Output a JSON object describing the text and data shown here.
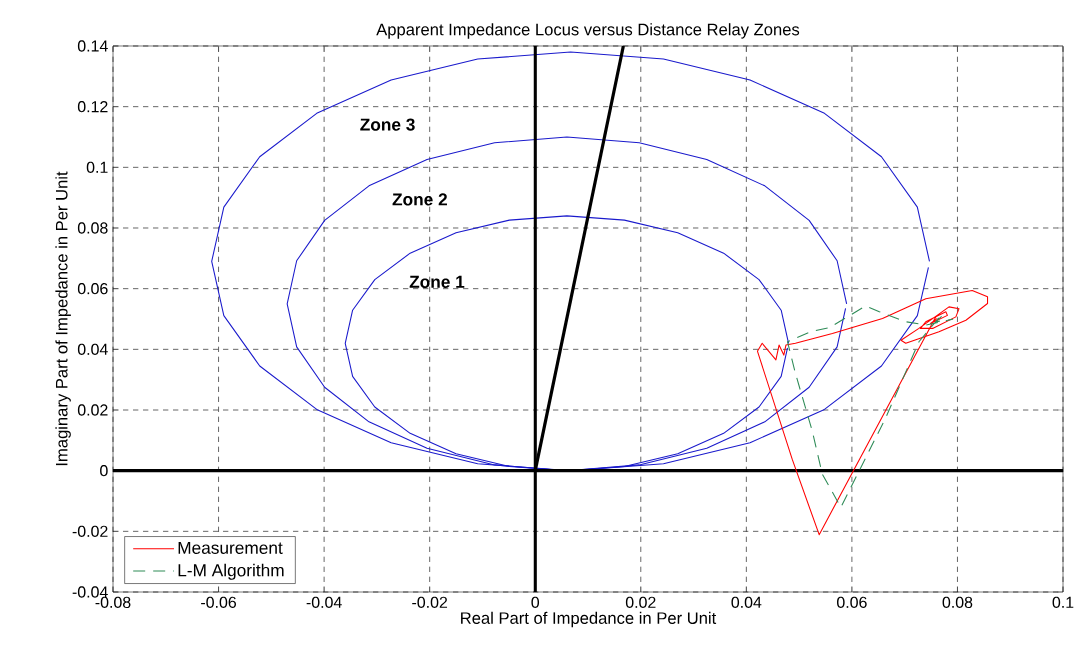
{
  "chart_data": {
    "type": "line",
    "title": "Apparent Impedance Locus versus Distance Relay Zones",
    "xlabel": "Real Part of Impedance in Per Unit",
    "ylabel": "Imaginary Part of Impedance in Per Unit",
    "xlim": [
      -0.08,
      0.1
    ],
    "ylim": [
      -0.04,
      0.14
    ],
    "xticks": [
      -0.08,
      -0.06,
      -0.04,
      -0.02,
      0,
      0.02,
      0.04,
      0.06,
      0.08,
      0.1
    ],
    "yticks": [
      -0.04,
      -0.02,
      0,
      0.02,
      0.04,
      0.06,
      0.08,
      0.1,
      0.12,
      0.14
    ],
    "grid": true,
    "legend": "bottom left",
    "series": [
      {
        "color": "#1a1acc",
        "x": [
          0.0747,
          0.0724,
          0.0656,
          0.0548,
          0.0407,
          0.0243,
          0.0067,
          -0.0109,
          -0.0273,
          -0.0414,
          -0.0522,
          -0.059,
          -0.0613,
          -0.059,
          -0.0522,
          -0.0414,
          -0.0273,
          -0.0109,
          0.0067,
          0.0243,
          0.0407,
          0.0548,
          0.0656,
          0.0724,
          0.0745
        ],
        "values": [
          0.069,
          0.0869,
          0.1035,
          0.1178,
          0.1288,
          0.1357,
          0.138,
          0.1357,
          0.1288,
          0.1178,
          0.1035,
          0.0869,
          0.069,
          0.0511,
          0.0345,
          0.0202,
          0.0092,
          0.0023,
          0.0,
          0.0023,
          0.0092,
          0.0202,
          0.0345,
          0.0511,
          0.067
        ]
      },
      {
        "color": "#1a1acc",
        "x": [
          0.059,
          0.0572,
          0.0519,
          0.0435,
          0.0325,
          0.0197,
          0.006,
          -0.0077,
          -0.0205,
          -0.0315,
          -0.0399,
          -0.0452,
          -0.047,
          -0.0452,
          -0.0399,
          -0.0315,
          -0.0205,
          -0.0077,
          0.006,
          0.0197,
          0.0325,
          0.0435,
          0.0519,
          0.0572,
          0.0588
        ],
        "values": [
          0.055,
          0.0692,
          0.0825,
          0.0939,
          0.1026,
          0.1081,
          0.11,
          0.1081,
          0.1026,
          0.0939,
          0.0825,
          0.0692,
          0.055,
          0.0408,
          0.0275,
          0.0161,
          0.0074,
          0.0019,
          0.0,
          0.0019,
          0.0074,
          0.0161,
          0.0275,
          0.0408,
          0.0535
        ]
      },
      {
        "color": "#1a1acc",
        "x": [
          0.048,
          0.0466,
          0.0424,
          0.0357,
          0.027,
          0.0169,
          0.006,
          -0.0049,
          -0.015,
          -0.0237,
          -0.0304,
          -0.0346,
          -0.036,
          -0.0346,
          -0.0304,
          -0.0237,
          -0.015,
          -0.0049,
          0.006,
          0.0169,
          0.027,
          0.0357,
          0.0424,
          0.0466,
          0.0478
        ],
        "values": [
          0.042,
          0.0529,
          0.063,
          0.0717,
          0.0784,
          0.0826,
          0.084,
          0.0826,
          0.0784,
          0.0717,
          0.063,
          0.0529,
          0.042,
          0.0311,
          0.021,
          0.0123,
          0.0056,
          0.0014,
          0.0,
          0.0014,
          0.0056,
          0.0123,
          0.021,
          0.0311,
          0.0405
        ]
      },
      {
        "color": "#000000",
        "x": [
          0,
          0.0167
        ],
        "values": [
          0,
          0.14
        ]
      },
      {
        "color": "#000000",
        "x": [
          -0.08,
          0.1
        ],
        "values": [
          0,
          0
        ]
      },
      {
        "color": "#000000",
        "x": [
          0,
          0
        ],
        "values": [
          -0.04,
          0.14
        ]
      },
      {
        "name": "Measurement",
        "color": "#ff0000",
        "line_style": "solid",
        "x": [
          0.0759,
          0.0737,
          0.0538,
          0.0487,
          0.0421,
          0.043,
          0.0456,
          0.0462,
          0.0471,
          0.0475,
          0.0493,
          0.0563,
          0.0658,
          0.074,
          0.0828,
          0.0857,
          0.0857,
          0.0816,
          0.0765,
          0.0702,
          0.0693,
          0.0727,
          0.0784,
          0.0803,
          0.0797,
          0.0753,
          0.073,
          0.074,
          0.0778,
          0.0781,
          0.0749,
          0.0762
        ],
        "values": [
          0.0507,
          0.0436,
          -0.0211,
          0.0037,
          0.0394,
          0.042,
          0.0365,
          0.0414,
          0.0381,
          0.0414,
          0.042,
          0.0452,
          0.0502,
          0.0567,
          0.0594,
          0.0573,
          0.0551,
          0.0496,
          0.0458,
          0.042,
          0.043,
          0.0469,
          0.054,
          0.0534,
          0.0507,
          0.0469,
          0.0469,
          0.0491,
          0.0524,
          0.0512,
          0.0485,
          0.0502
        ]
      },
      {
        "name": "L-M Algorithm",
        "color": "#2e8b57",
        "line_style": "dashed",
        "x": [
          0.0765,
          0.0727,
          0.0664,
          0.0601,
          0.0579,
          0.056,
          0.0544,
          0.0525,
          0.0493,
          0.0478,
          0.0525,
          0.0557,
          0.0626,
          0.0652,
          0.0702,
          0.074,
          0.0791,
          0.0759,
          0.0772
        ],
        "values": [
          0.0504,
          0.0425,
          0.0174,
          -0.0045,
          -0.0121,
          -0.0061,
          -0.0012,
          0.013,
          0.0321,
          0.0425,
          0.046,
          0.0471,
          0.0543,
          0.0524,
          0.0491,
          0.048,
          0.0499,
          0.0491,
          0.0512
        ]
      }
    ],
    "annotations": [
      "Zone 3",
      "Zone 2",
      "Zone 1"
    ]
  }
}
